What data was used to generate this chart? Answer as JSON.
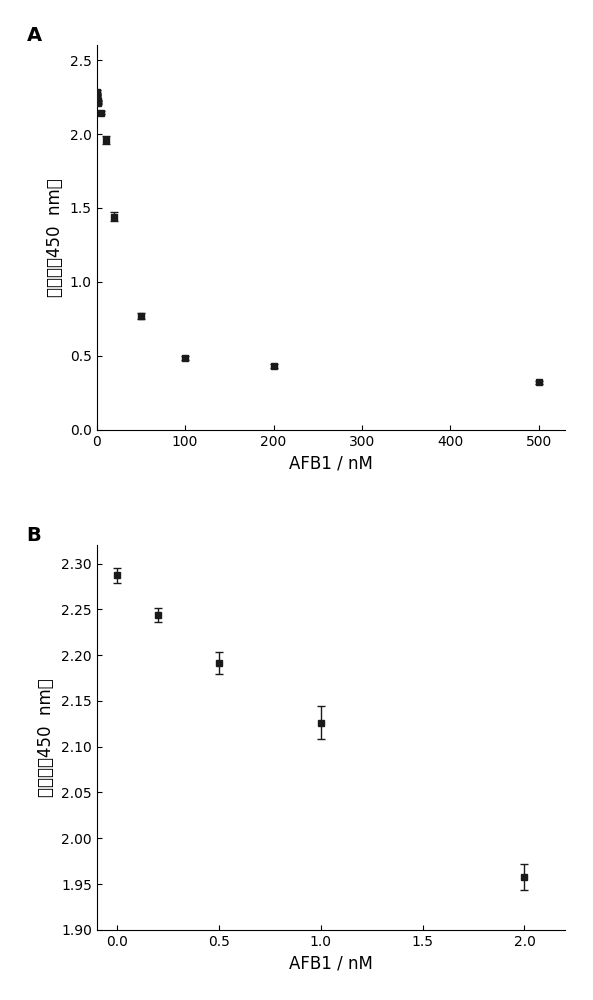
{
  "panel_A": {
    "x": [
      0.1,
      0.5,
      1,
      2,
      5,
      10,
      20,
      50,
      100,
      200,
      500
    ],
    "y": [
      2.285,
      2.255,
      2.22,
      2.21,
      2.145,
      1.96,
      1.44,
      0.77,
      0.485,
      0.43,
      0.32
    ],
    "yerr": [
      0.015,
      0.012,
      0.01,
      0.01,
      0.01,
      0.025,
      0.03,
      0.02,
      0.015,
      0.015,
      0.01
    ],
    "extra_points_x": [
      0.2,
      0.3,
      0.4,
      0.6,
      0.7,
      0.8
    ],
    "extra_points_y": [
      2.27,
      2.265,
      2.26,
      2.24,
      2.235,
      2.23
    ],
    "xlim": [
      0,
      530
    ],
    "ylim": [
      0,
      2.6
    ],
    "xticks": [
      0,
      100,
      200,
      300,
      400,
      500
    ],
    "yticks": [
      0.0,
      0.5,
      1.0,
      1.5,
      2.0,
      2.5
    ],
    "xlabel": "AFB1 / nM",
    "ylabel": "吸光度（450  nm）",
    "label": "A"
  },
  "panel_B": {
    "x": [
      0.0,
      0.2,
      0.5,
      1.0,
      2.0
    ],
    "y": [
      2.287,
      2.244,
      2.191,
      2.126,
      1.958
    ],
    "yerr": [
      0.008,
      0.008,
      0.012,
      0.018,
      0.014
    ],
    "xlim": [
      -0.1,
      2.2
    ],
    "ylim": [
      1.9,
      2.32
    ],
    "xticks": [
      0.0,
      0.5,
      1.0,
      1.5,
      2.0
    ],
    "yticks": [
      1.9,
      1.95,
      2.0,
      2.05,
      2.1,
      2.15,
      2.2,
      2.25,
      2.3
    ],
    "xlabel": "AFB1 / nM",
    "ylabel": "吸光度（450  nm）",
    "label": "B"
  },
  "marker": "s",
  "markersize": 5,
  "linewidth": 1.0,
  "color": "#1a1a1a",
  "capsize": 3,
  "elinewidth": 1.0,
  "background_color": "#ffffff",
  "font_size_label": 12,
  "font_size_tick": 10,
  "font_size_panel": 14
}
